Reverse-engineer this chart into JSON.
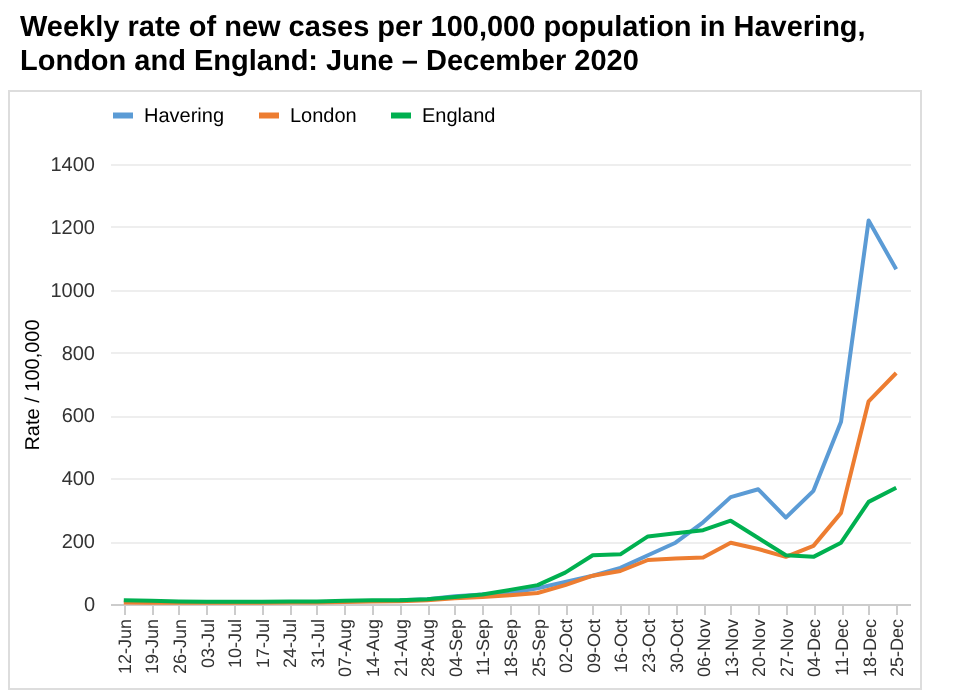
{
  "chart_data": {
    "type": "line",
    "title": "Weekly rate of new cases per 100,000 population in Havering, London and England: June – December 2020",
    "ylabel": "Rate / 100,000",
    "categories": [
      "12-Jun",
      "19-Jun",
      "26-Jun",
      "03-Jul",
      "10-Jul",
      "17-Jul",
      "24-Jul",
      "31-Jul",
      "07-Aug",
      "14-Aug",
      "21-Aug",
      "28-Aug",
      "04-Sep",
      "11-Sep",
      "18-Sep",
      "25-Sep",
      "02-Oct",
      "09-Oct",
      "16-Oct",
      "23-Oct",
      "30-Oct",
      "06-Nov",
      "13-Nov",
      "20-Nov",
      "27-Nov",
      "04-Dec",
      "11-Dec",
      "18-Dec",
      "25-Dec"
    ],
    "series": [
      {
        "name": "Havering",
        "color": "#5b9bd5",
        "values": [
          null,
          null,
          null,
          null,
          null,
          null,
          null,
          null,
          null,
          null,
          12,
          15,
          25,
          30,
          35,
          50,
          70,
          90,
          115,
          155,
          195,
          260,
          340,
          365,
          275,
          360,
          580,
          1220,
          1065
        ]
      },
      {
        "name": "London",
        "color": "#ed7d31",
        "values": [
          5,
          4,
          4,
          4,
          4,
          4,
          5,
          5,
          6,
          8,
          9,
          12,
          18,
          22,
          28,
          35,
          60,
          90,
          105,
          140,
          145,
          148,
          195,
          175,
          150,
          185,
          290,
          645,
          735
        ]
      },
      {
        "name": "England",
        "color": "#00b050",
        "values": [
          12,
          10,
          8,
          7,
          7,
          7,
          8,
          8,
          10,
          12,
          12,
          15,
          22,
          30,
          45,
          60,
          100,
          155,
          158,
          215,
          225,
          235,
          265,
          210,
          155,
          150,
          195,
          325,
          370
        ]
      }
    ],
    "ylim": [
      0,
      1400
    ],
    "yticks": [
      0,
      200,
      400,
      600,
      800,
      1000,
      1200,
      1400
    ],
    "grid": "y",
    "legend": "top",
    "marker": "none",
    "line_style": "solid"
  }
}
